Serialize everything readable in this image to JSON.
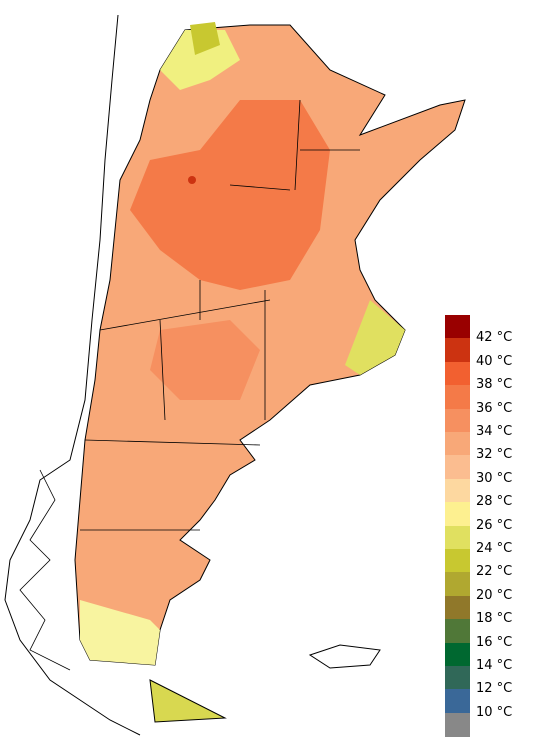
{
  "legend": {
    "labels": [
      "42 °C",
      "40 °C",
      "38 °C",
      "36 °C",
      "34 °C",
      "32 °C",
      "30 °C",
      "28 °C",
      "26 °C",
      "24 °C",
      "22 °C",
      "20 °C",
      "18 °C",
      "16 °C",
      "14 °C",
      "12 °C",
      "10 °C"
    ],
    "colors": [
      "#990000",
      "#cc3311",
      "#f26030",
      "#f47a48",
      "#f69060",
      "#f8a878",
      "#fbbd90",
      "#fdd8a0",
      "#fdf090",
      "#e0e060",
      "#c8c830",
      "#b0a830",
      "#90782a",
      "#507838",
      "#006830",
      "#306858",
      "#3a6898",
      "#888888"
    ]
  }
}
